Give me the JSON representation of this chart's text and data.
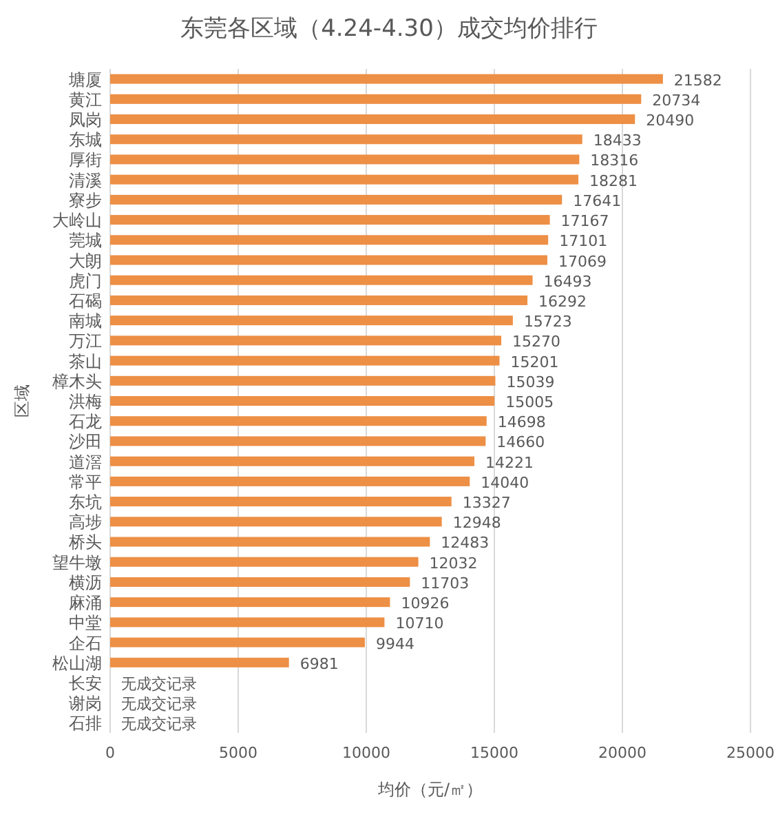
{
  "chart_data": {
    "type": "bar",
    "orientation": "horizontal",
    "title": "东莞各区域（4.24-4.30）成交均价排行",
    "xlabel": "均价（元/㎡）",
    "ylabel": "区域",
    "categories": [
      "塘厦",
      "黄江",
      "凤岗",
      "东城",
      "厚街",
      "清溪",
      "寮步",
      "大岭山",
      "莞城",
      "大朗",
      "虎门",
      "石碣",
      "南城",
      "万江",
      "茶山",
      "樟木头",
      "洪梅",
      "石龙",
      "沙田",
      "道滘",
      "常平",
      "东坑",
      "高埗",
      "桥头",
      "望牛墩",
      "横沥",
      "麻涌",
      "中堂",
      "企石",
      "松山湖",
      "长安",
      "谢岗",
      "石排"
    ],
    "values": [
      21582,
      20734,
      20490,
      18433,
      18316,
      18281,
      17641,
      17167,
      17101,
      17069,
      16493,
      16292,
      15723,
      15270,
      15201,
      15039,
      15005,
      14698,
      14660,
      14221,
      14040,
      13327,
      12948,
      12483,
      12032,
      11703,
      10926,
      10710,
      9944,
      6981,
      null,
      null,
      null
    ],
    "value_labels": [
      "21582",
      "20734",
      "20490",
      "18433",
      "18316",
      "18281",
      "17641",
      "17167",
      "17101",
      "17069",
      "16493",
      "16292",
      "15723",
      "15270",
      "15201",
      "15039",
      "15005",
      "14698",
      "14660",
      "14221",
      "14040",
      "13327",
      "12948",
      "12483",
      "12032",
      "11703",
      "10926",
      "10710",
      "9944",
      "6981",
      "无成交记录",
      "无成交记录",
      "无成交记录"
    ],
    "color": "#ed8f45",
    "xlim": [
      0,
      25000
    ],
    "xticks": [
      0,
      5000,
      10000,
      15000,
      20000,
      25000
    ],
    "grid": "x"
  }
}
